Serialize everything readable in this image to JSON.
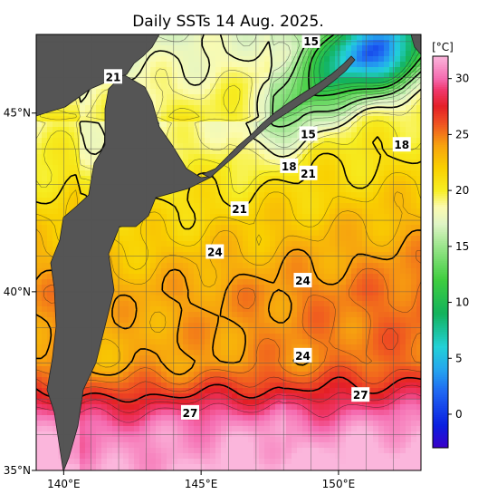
{
  "chart_data": {
    "type": "heatmap",
    "title": "Daily SSTs 14 Aug. 2025.",
    "x_axis": {
      "range": [
        139,
        153
      ],
      "ticks": [
        {
          "value": 140,
          "label": "140°E"
        },
        {
          "value": 145,
          "label": "145°E"
        },
        {
          "value": 150,
          "label": "150°E"
        }
      ],
      "grid_every": 1
    },
    "y_axis": {
      "range": [
        35,
        47.2
      ],
      "ticks": [
        {
          "value": 35,
          "label": "35°N"
        },
        {
          "value": 40,
          "label": "40°N"
        },
        {
          "value": 45,
          "label": "45°N"
        }
      ],
      "grid_every": 1
    },
    "grid": true,
    "colorbar": {
      "unit_label": "[°C]",
      "range": [
        -3,
        32
      ],
      "ticks": [
        0,
        5,
        10,
        15,
        20,
        25,
        30
      ],
      "stops": [
        {
          "t": -3,
          "color": "#3a00c8"
        },
        {
          "t": -1,
          "color": "#0a1fe0"
        },
        {
          "t": 2,
          "color": "#1f67f2"
        },
        {
          "t": 4,
          "color": "#24a6ee"
        },
        {
          "t": 6,
          "color": "#22d1d7"
        },
        {
          "t": 9,
          "color": "#13b25c"
        },
        {
          "t": 12,
          "color": "#3fce3f"
        },
        {
          "t": 15,
          "color": "#9be58c"
        },
        {
          "t": 17,
          "color": "#e0f4c6"
        },
        {
          "t": 18.5,
          "color": "#fbfbb0"
        },
        {
          "t": 20,
          "color": "#f7ee22"
        },
        {
          "t": 22,
          "color": "#f9d000"
        },
        {
          "t": 24,
          "color": "#f7a30f"
        },
        {
          "t": 26,
          "color": "#ef5122"
        },
        {
          "t": 27.5,
          "color": "#e41f26"
        },
        {
          "t": 29,
          "color": "#f0386e"
        },
        {
          "t": 30,
          "color": "#f56bb0"
        },
        {
          "t": 32,
          "color": "#fbb6dc"
        }
      ]
    },
    "contour_labels": [
      {
        "text": "15",
        "lon": 149.0,
        "lat": 47.0
      },
      {
        "text": "21",
        "lon": 141.8,
        "lat": 46.0
      },
      {
        "text": "15",
        "lon": 148.9,
        "lat": 44.4
      },
      {
        "text": "18",
        "lon": 152.3,
        "lat": 44.1
      },
      {
        "text": "18",
        "lon": 148.2,
        "lat": 43.5
      },
      {
        "text": "21",
        "lon": 148.9,
        "lat": 43.3
      },
      {
        "text": "21",
        "lon": 146.4,
        "lat": 42.3
      },
      {
        "text": "24",
        "lon": 145.5,
        "lat": 41.1
      },
      {
        "text": "24",
        "lon": 148.7,
        "lat": 40.3
      },
      {
        "text": "24",
        "lon": 148.7,
        "lat": 38.2
      },
      {
        "text": "27",
        "lon": 150.8,
        "lat": 37.1
      },
      {
        "text": "27",
        "lon": 144.6,
        "lat": 36.6
      }
    ]
  }
}
